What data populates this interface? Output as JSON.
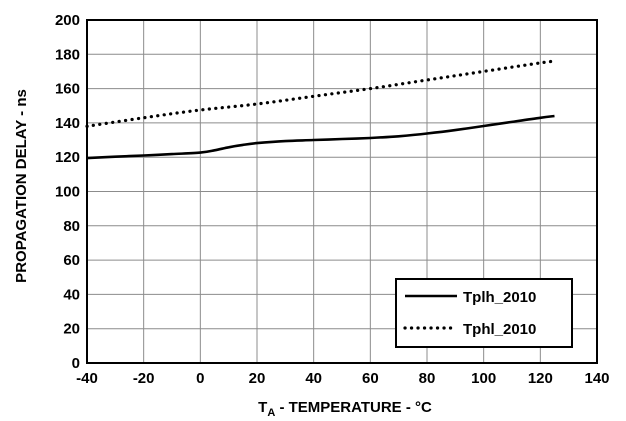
{
  "chart_data": {
    "type": "line",
    "title": "",
    "xlabel": {
      "prefix": "T",
      "subscript": "A",
      "rest": " - TEMPERATURE - °C"
    },
    "ylabel": "PROPAGATION DELAY - ns",
    "xlim": [
      -40,
      140
    ],
    "ylim": [
      0,
      200
    ],
    "xticks": [
      -40,
      -20,
      0,
      20,
      40,
      60,
      80,
      100,
      120,
      140
    ],
    "yticks": [
      0,
      20,
      40,
      60,
      80,
      100,
      120,
      140,
      160,
      180,
      200
    ],
    "grid": true,
    "legend_position": "bottom-right",
    "series": [
      {
        "name": "Tplh_2010",
        "style": "solid",
        "color": "#000000",
        "x": [
          -40,
          -30,
          -20,
          -10,
          0,
          5,
          10,
          15,
          20,
          30,
          40,
          50,
          60,
          70,
          80,
          90,
          100,
          110,
          120,
          125
        ],
        "y": [
          119.5,
          120.3,
          121,
          121.8,
          122.7,
          124,
          125.8,
          127.2,
          128.2,
          129.4,
          130,
          130.6,
          131.2,
          132.2,
          133.8,
          135.8,
          138.2,
          140.6,
          143,
          144
        ]
      },
      {
        "name": "Tphl_2010",
        "style": "dotted",
        "color": "#000000",
        "x": [
          -40,
          -20,
          0,
          20,
          40,
          60,
          80,
          100,
          120,
          125
        ],
        "y": [
          138,
          143,
          147.5,
          151,
          155.5,
          160,
          165,
          170,
          175,
          176
        ]
      }
    ]
  }
}
